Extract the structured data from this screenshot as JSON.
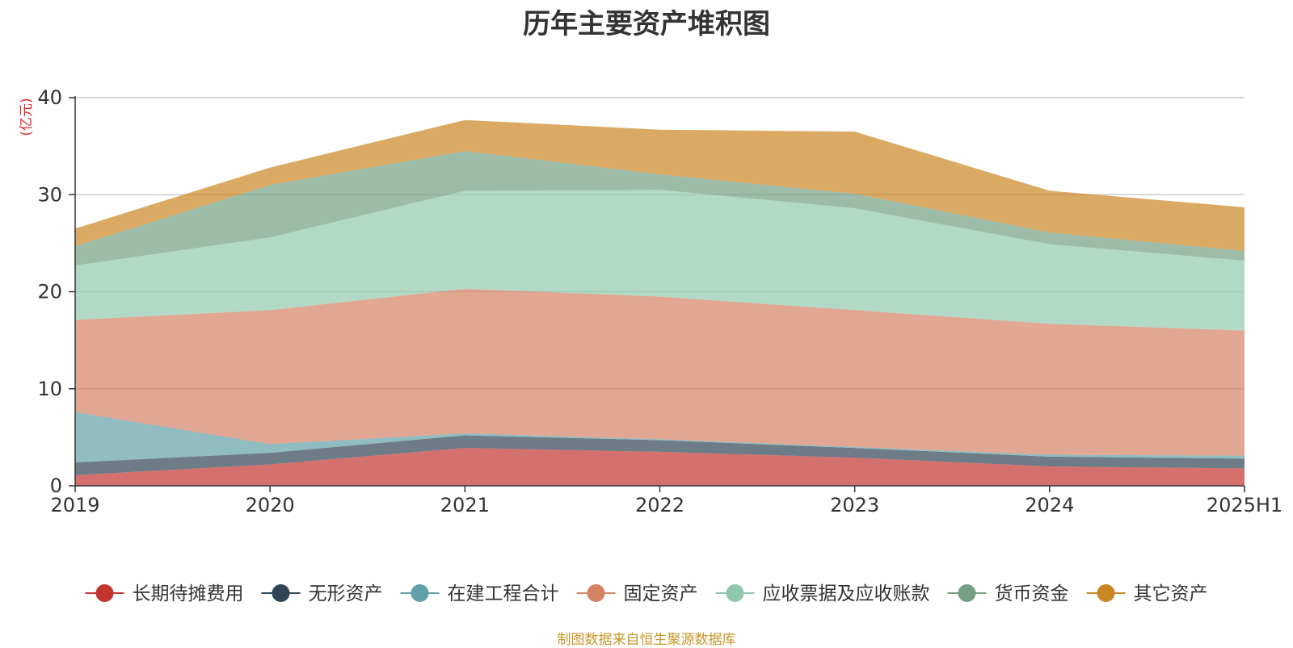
{
  "title": "历年主要资产堆积图",
  "source": "制图数据来自恒生聚源数据库",
  "chart_data": {
    "type": "area",
    "stacked": true,
    "categories": [
      "2019",
      "2020",
      "2021",
      "2022",
      "2023",
      "2024",
      "2025H1"
    ],
    "ylabel": "(亿元)",
    "ylim": [
      0,
      40
    ],
    "yticks": [
      "0",
      "10",
      "20",
      "30",
      "40"
    ],
    "grid": true,
    "legend_position": "bottom",
    "series": [
      {
        "name": "长期待摊费用",
        "color": "#c23531",
        "values": [
          1.1,
          2.2,
          3.9,
          3.5,
          2.9,
          2.0,
          1.8
        ]
      },
      {
        "name": "无形资产",
        "color": "#2f4554",
        "values": [
          1.3,
          1.2,
          1.3,
          1.2,
          1.0,
          1.0,
          1.0
        ]
      },
      {
        "name": "在建工程合计",
        "color": "#61a0a8",
        "values": [
          5.2,
          0.9,
          0.2,
          0.1,
          0.1,
          0.2,
          0.3
        ]
      },
      {
        "name": "固定资产",
        "color": "#d48265",
        "values": [
          9.5,
          13.8,
          14.9,
          14.7,
          14.1,
          13.5,
          12.9
        ]
      },
      {
        "name": "应收票据及应收账款",
        "color": "#91c7ae",
        "values": [
          5.6,
          7.5,
          10.1,
          11.0,
          10.5,
          8.2,
          7.2
        ]
      },
      {
        "name": "货币资金",
        "color": "#749f83",
        "values": [
          2.0,
          5.4,
          4.1,
          1.6,
          1.5,
          1.2,
          1.0
        ]
      },
      {
        "name": "其它资产",
        "color": "#ca8622",
        "values": [
          1.8,
          1.8,
          3.2,
          4.6,
          6.4,
          4.3,
          4.5
        ]
      }
    ]
  }
}
